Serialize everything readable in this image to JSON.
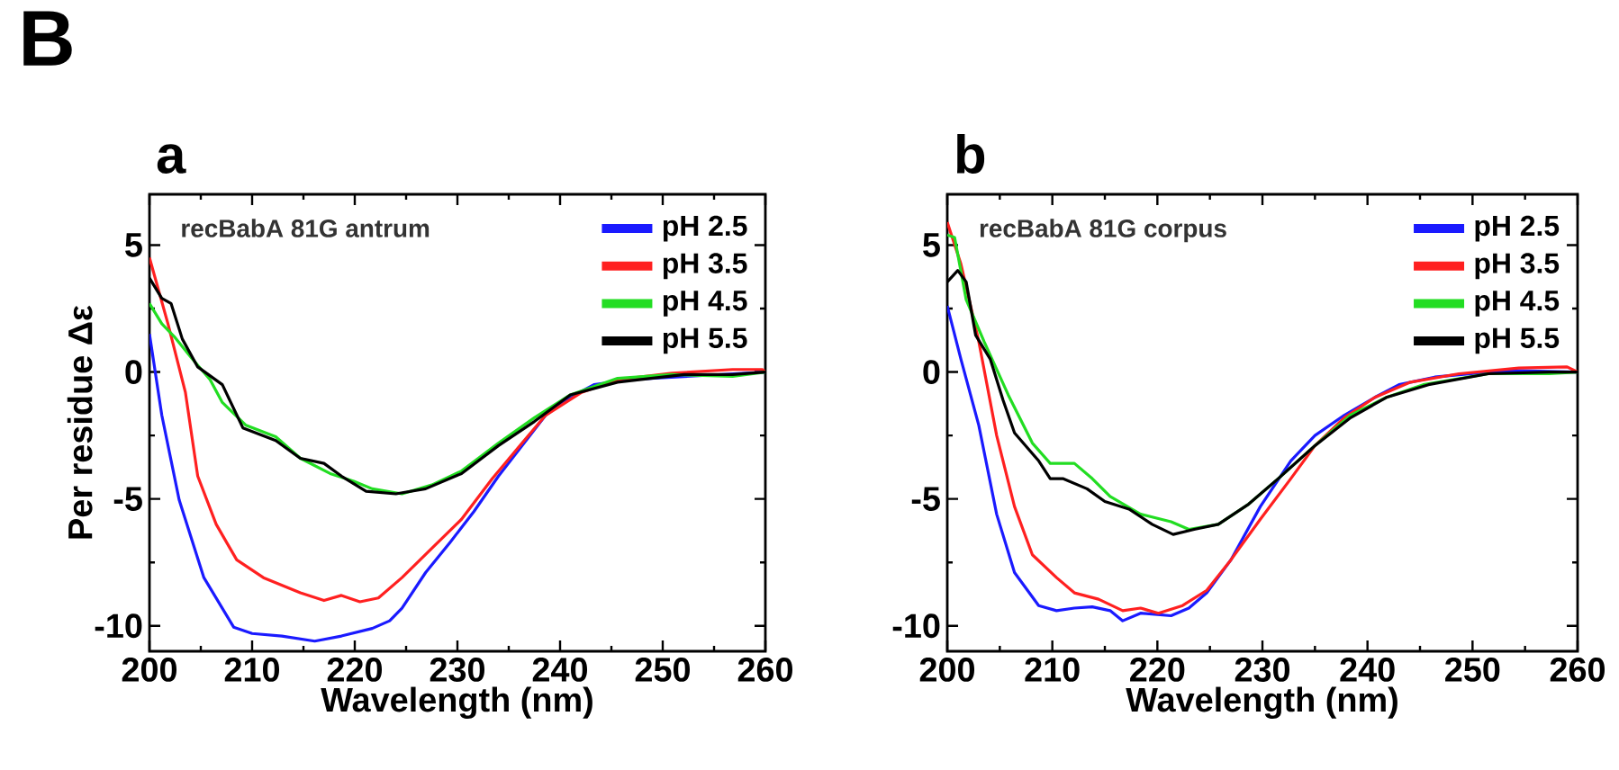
{
  "chart_data": [
    {
      "type": "line",
      "title": "a",
      "xlabel": "Wavelength (nm)",
      "ylabel": "Per residue Δε",
      "annotations": [
        "recBabA 81G antrum",
        "B"
      ],
      "xlim": [
        200,
        260
      ],
      "ylim": [
        -11,
        7
      ],
      "xticks": [
        200,
        210,
        220,
        230,
        240,
        250,
        260
      ],
      "yticks": [
        -10,
        -5,
        0,
        5
      ],
      "legend": "top right",
      "line_style": "solid",
      "series": [
        {
          "name": "pH 2.5",
          "color": "#1a1aff",
          "x": [
            200,
            201.2,
            202.9,
            205.3,
            208.2,
            210,
            212.9,
            216.1,
            218.7,
            221.7,
            223.4,
            224.6,
            226.9,
            229.3,
            231.6,
            234,
            236.3,
            238.6,
            241,
            243.3,
            246.8,
            250.9,
            256.8,
            260
          ],
          "values": [
            1.5,
            -1.7,
            -5.05,
            -8.1,
            -10.05,
            -10.3,
            -10.4,
            -10.6,
            -10.4,
            -10.1,
            -9.8,
            -9.3,
            -7.9,
            -6.7,
            -5.5,
            -4.1,
            -2.9,
            -1.7,
            -1.0,
            -0.5,
            -0.3,
            null,
            null,
            0
          ]
        },
        {
          "name": "pH 3.5",
          "color": "#ff2020",
          "x": [
            200,
            201.8,
            203.5,
            204.7,
            206.5,
            208.5,
            211.1,
            214.7,
            217,
            218.7,
            220.5,
            222.3,
            224.6,
            227.5,
            230.4,
            233.4,
            236.3,
            238.6,
            242.1,
            245.6,
            250.9,
            256.8,
            259.7,
            260
          ],
          "values": [
            4.5,
            1.9,
            -0.8,
            -4.1,
            -6.0,
            -7.4,
            -8.1,
            -8.7,
            -9.0,
            -8.8,
            -9.05,
            -8.9,
            -8.1,
            -6.95,
            -5.8,
            -4.2,
            -2.8,
            -1.7,
            -0.8,
            -0.3,
            -0.05,
            0.1,
            0.1,
            0
          ]
        },
        {
          "name": "pH 4.5",
          "color": "#22dd22",
          "x": [
            200,
            201.2,
            202.4,
            204.1,
            205.9,
            207.1,
            209.4,
            212.3,
            214.7,
            217.6,
            219.9,
            221.7,
            224.6,
            227.5,
            230.4,
            234,
            237.5,
            241,
            245.6,
            250.9,
            256.8,
            260
          ],
          "values": [
            2.7,
            1.9,
            1.4,
            0.55,
            -0.3,
            -1.2,
            -2.1,
            -2.55,
            -3.4,
            -4.0,
            -4.3,
            -4.6,
            -4.8,
            -4.45,
            -3.9,
            -2.8,
            -1.8,
            -0.9,
            -0.25,
            -0.1,
            -0.17,
            0
          ]
        },
        {
          "name": "pH 5.5",
          "color": "#000000",
          "x": [
            200,
            201.2,
            202.1,
            203.2,
            204.7,
            207.1,
            209.1,
            212.3,
            214.7,
            217,
            218.7,
            221.1,
            224,
            226.9,
            230.4,
            234,
            237.5,
            241,
            245.6,
            252.1,
            256.8,
            260
          ],
          "values": [
            3.7,
            2.9,
            2.7,
            1.3,
            0.2,
            -0.5,
            -2.2,
            -2.7,
            -3.4,
            -3.6,
            -4.1,
            -4.7,
            -4.8,
            -4.6,
            -4.0,
            -2.9,
            -1.95,
            -0.9,
            -0.4,
            -0.1,
            -0.1,
            0
          ]
        }
      ]
    },
    {
      "type": "line",
      "title": "b",
      "xlabel": "Wavelength (nm)",
      "annotations": [
        "recBabA 81G corpus"
      ],
      "xlim": [
        200,
        260
      ],
      "ylim": [
        -11,
        7
      ],
      "xticks": [
        200,
        210,
        220,
        230,
        240,
        250,
        260
      ],
      "yticks": [
        -10,
        -5,
        0,
        5
      ],
      "legend": "top right",
      "line_style": "solid",
      "series": [
        {
          "name": "pH 2.5",
          "color": "#1a1aff",
          "x": [
            200,
            201.3,
            203,
            204.7,
            206.4,
            208.7,
            210.4,
            212.1,
            213.8,
            215.5,
            216.7,
            218.4,
            221.3,
            223,
            224.7,
            227,
            229.8,
            232.7,
            235,
            237.8,
            240.7,
            243,
            246.4,
            251.5,
            254.4,
            260
          ],
          "values": [
            2.6,
            0.5,
            -2.1,
            -5.6,
            -7.9,
            -9.2,
            -9.4,
            -9.3,
            -9.25,
            -9.4,
            -9.8,
            -9.5,
            -9.6,
            -9.3,
            -8.7,
            -7.4,
            -5.3,
            -3.5,
            -2.5,
            -1.7,
            -1.0,
            -0.5,
            -0.2,
            0,
            0.05,
            0
          ]
        },
        {
          "name": "pH 3.5",
          "color": "#ff2020",
          "x": [
            200,
            201.3,
            203,
            204.7,
            206.4,
            208.1,
            210.4,
            212.1,
            214.4,
            216.7,
            218.4,
            220.1,
            222.4,
            224.7,
            227,
            229.8,
            232.7,
            235,
            237.8,
            240.7,
            244.1,
            248.7,
            254.4,
            259,
            260
          ],
          "values": [
            5.9,
            4.25,
            1.2,
            -2.5,
            -5.3,
            -7.2,
            -8.1,
            -8.7,
            -8.95,
            -9.4,
            -9.3,
            -9.5,
            -9.2,
            -8.6,
            -7.4,
            -5.8,
            -4.2,
            -2.9,
            -1.8,
            -1.0,
            -0.4,
            -0.07,
            0.16,
            0.2,
            0
          ]
        },
        {
          "name": "pH 4.5",
          "color": "#22dd22",
          "x": [
            200,
            200.7,
            201.8,
            203.5,
            205.8,
            208.1,
            209.8,
            212.1,
            213.8,
            215.5,
            218.4,
            221.3,
            223,
            225.8,
            228.7,
            231.5,
            235,
            238.4,
            241.8,
            245.3,
            251.5,
            257.3,
            260
          ],
          "values": [
            5.4,
            5.3,
            2.85,
            1.2,
            -0.9,
            -2.8,
            -3.6,
            -3.6,
            -4.2,
            -4.9,
            -5.6,
            -5.9,
            -6.2,
            -6.0,
            -5.2,
            -4.2,
            -2.9,
            -1.7,
            -1.0,
            -0.5,
            -0.07,
            -0.07,
            0
          ]
        },
        {
          "name": "pH 5.5",
          "color": "#000000",
          "x": [
            200,
            201,
            201.8,
            202.7,
            204.1,
            205.3,
            206.4,
            208.7,
            209.8,
            211,
            213.3,
            215,
            217.3,
            219.5,
            221.5,
            223.5,
            225.8,
            228.7,
            231.5,
            235,
            238.4,
            241.8,
            245.8,
            251.5,
            257.3,
            260
          ],
          "values": [
            3.55,
            4.0,
            3.55,
            1.45,
            0.5,
            -1.1,
            -2.4,
            -3.5,
            -4.2,
            -4.2,
            -4.6,
            -5.1,
            -5.4,
            -6.0,
            -6.4,
            -6.2,
            -6.0,
            -5.2,
            -4.2,
            -2.9,
            -1.8,
            -1.0,
            -0.5,
            -0.07,
            0,
            0
          ]
        }
      ]
    }
  ]
}
